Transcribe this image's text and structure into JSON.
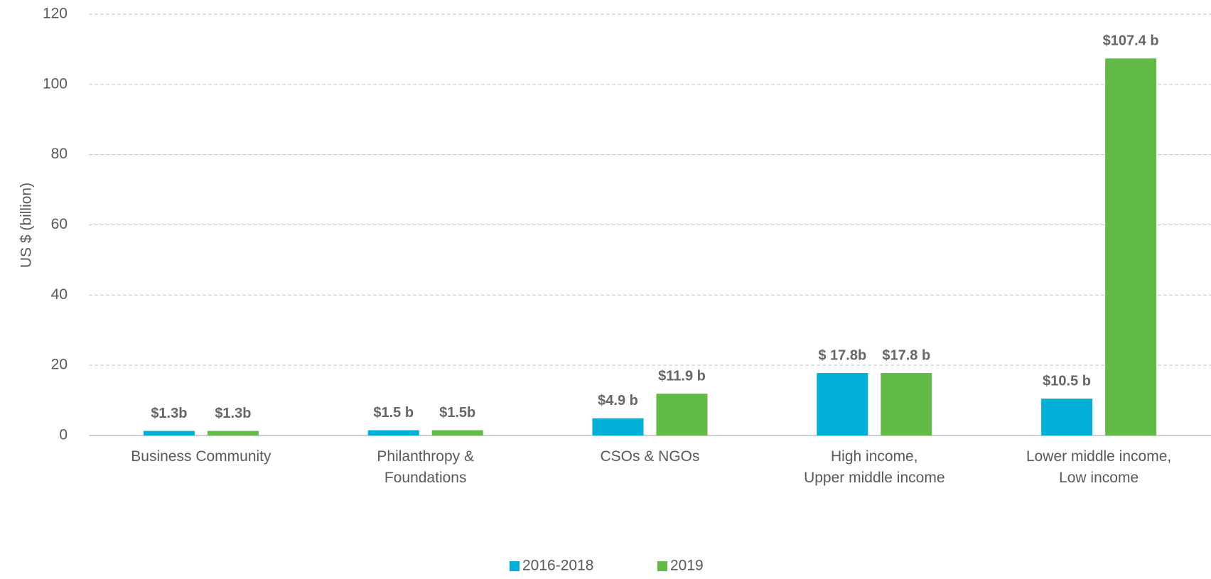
{
  "chart_data": {
    "type": "bar",
    "ylabel": "US $ (billion)",
    "categories": [
      "Business Community",
      "Philanthropy &\nFoundations",
      "CSOs & NGOs",
      "High income,\nUpper middle income",
      "Lower middle income,\nLow income"
    ],
    "series": [
      {
        "name": "2016-2018",
        "color": "#00b0d8",
        "values": [
          1.3,
          1.5,
          4.9,
          17.8,
          10.5
        ],
        "value_labels": [
          "$1.3b",
          "$1.5 b",
          "$4.9 b",
          "$ 17.8b",
          "$10.5 b"
        ]
      },
      {
        "name": "2019",
        "color": "#62bb46",
        "values": [
          1.3,
          1.5,
          11.9,
          17.8,
          107.4
        ],
        "value_labels": [
          "$1.3b",
          "$1.5b",
          "$11.9 b",
          "$17.8 b",
          "$107.4 b"
        ]
      }
    ],
    "ylim": [
      0,
      120
    ],
    "yticks": [
      0,
      20,
      40,
      60,
      80,
      100,
      120
    ],
    "grid": true,
    "legend": "bottom"
  }
}
